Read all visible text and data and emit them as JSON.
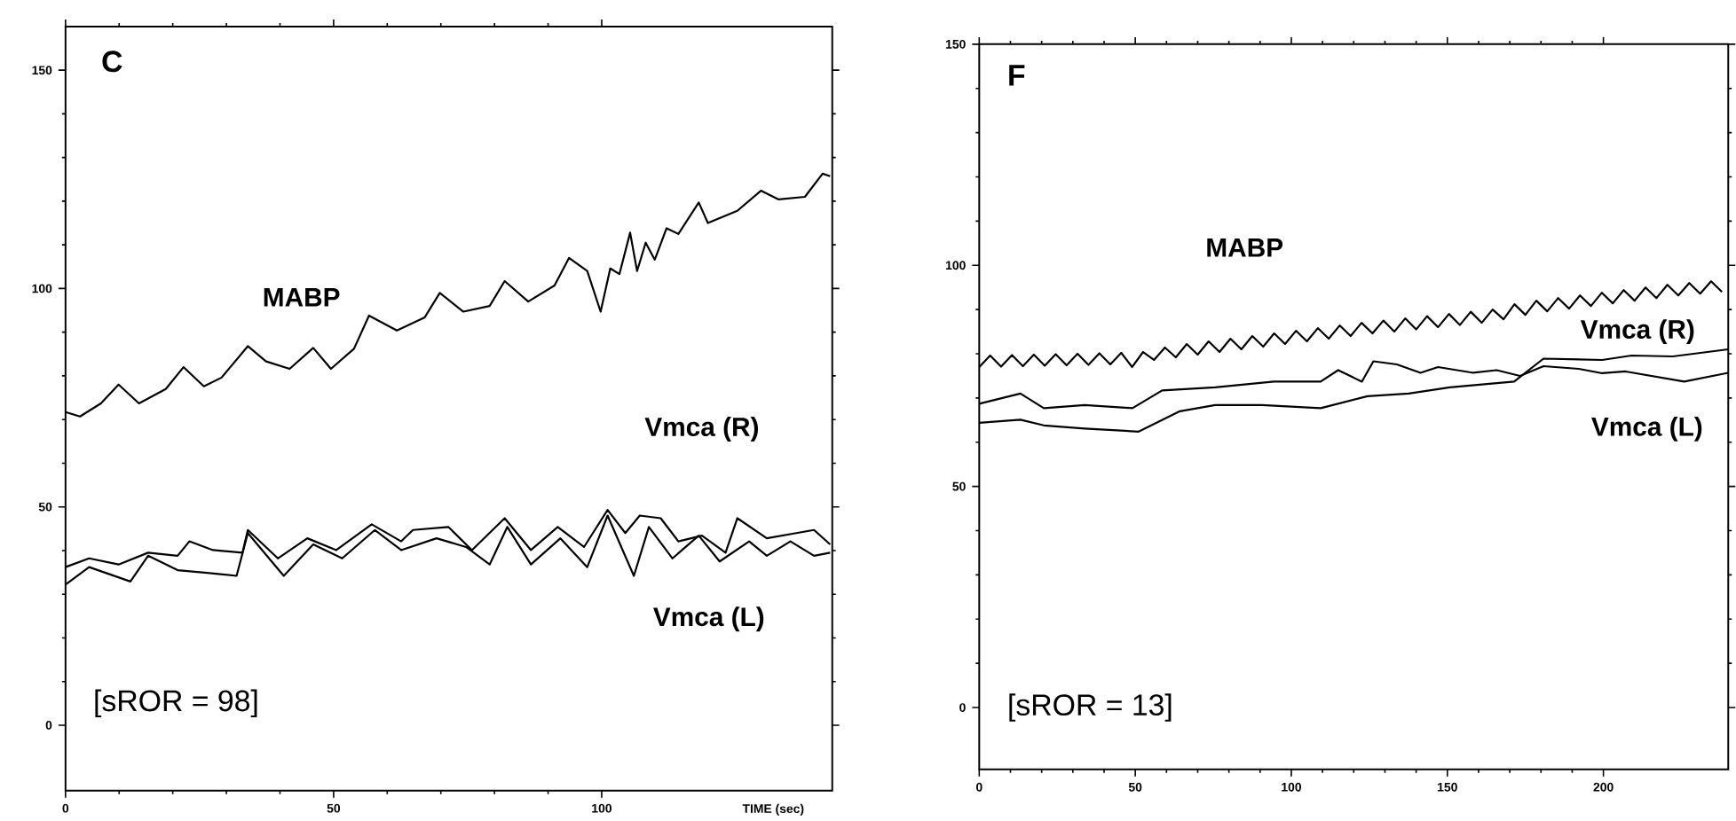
{
  "chart_data": [
    {
      "type": "line",
      "title": "C",
      "xlabel": "TIME (sec)",
      "annotations": [
        "[sROR = 98]"
      ],
      "xlim": [
        0,
        143
      ],
      "ylim": [
        -15,
        160
      ],
      "xticks": [
        0,
        50,
        100
      ],
      "yticks": [
        0,
        50,
        100,
        150
      ],
      "marker": "none",
      "line_style": "solid",
      "series": [
        {
          "name": "MABP",
          "color": "#000000",
          "x": [
            0,
            2.7,
            6.6,
            9.9,
            13.7,
            18.7,
            22,
            25.8,
            29.1,
            34,
            37.4,
            41.8,
            46.2,
            49.5,
            53.8,
            56.6,
            61.8,
            67,
            69.8,
            74.2,
            79.1,
            81.9,
            86.3,
            91.2,
            93.9,
            97.3,
            99.8,
            101.6,
            103.3,
            105.3,
            106.6,
            108.2,
            109.9,
            112.1,
            114.3,
            118.1,
            119.8,
            125.3,
            129.7,
            133,
            137.9,
            141.2,
            142.6
          ],
          "values": [
            71.7,
            70.7,
            73.7,
            78,
            73.7,
            77,
            82,
            77.6,
            79.6,
            86.8,
            83.3,
            81.6,
            86.4,
            81.6,
            86.2,
            93.8,
            90.4,
            93.4,
            99,
            94.7,
            96,
            101.7,
            97,
            100.7,
            107,
            104,
            94.7,
            104.6,
            103.3,
            112.8,
            104,
            110.5,
            106.6,
            113.8,
            112.5,
            119.7,
            115,
            117.8,
            122.4,
            120.4,
            121,
            126.3,
            125.7
          ]
        },
        {
          "name": "Vmca (R)",
          "color": "#000000",
          "x": [
            0,
            4.4,
            9.9,
            15.4,
            20.9,
            23.1,
            27.5,
            33,
            34,
            39.6,
            45.1,
            50.5,
            57.1,
            62.6,
            64.8,
            71.4,
            75.8,
            81.9,
            86.8,
            91.8,
            96.7,
            101.1,
            104.4,
            107.1,
            111,
            114.3,
            118.7,
            123.1,
            125.3,
            130.8,
            136.3,
            139.6,
            142.6
          ],
          "values": [
            36.2,
            38.2,
            36.8,
            39.5,
            38.8,
            42.1,
            40.1,
            39.5,
            44.7,
            38.2,
            42.8,
            40.1,
            46,
            42.1,
            44.7,
            45.4,
            40.1,
            47.4,
            40.1,
            45.4,
            40.8,
            49.3,
            44,
            48,
            47.4,
            42.1,
            43.4,
            39.5,
            47.4,
            42.8,
            44,
            44.7,
            41.4
          ]
        },
        {
          "name": "Vmca (L)",
          "color": "#000000",
          "x": [
            0,
            4.4,
            12.1,
            15.4,
            20.9,
            26.4,
            31.9,
            34,
            40.7,
            46.2,
            51.6,
            57.7,
            62.6,
            69.2,
            74.7,
            79.1,
            82.4,
            86.8,
            92.3,
            97.3,
            101.1,
            106,
            108.8,
            113.2,
            118.1,
            122,
            127.5,
            130.8,
            135.2,
            139.6,
            142.6
          ],
          "values": [
            32.2,
            36.2,
            32.9,
            38.8,
            35.5,
            34.9,
            34.2,
            44,
            34.2,
            41.4,
            38.2,
            44.7,
            40.1,
            42.8,
            40.8,
            36.8,
            45.4,
            36.8,
            42.8,
            36.2,
            48,
            34.2,
            45.4,
            38.2,
            43.4,
            37.5,
            42.1,
            38.8,
            42.1,
            38.8,
            39.5
          ]
        }
      ]
    },
    {
      "type": "line",
      "title": "F",
      "annotations": [
        "[sROR = 13]"
      ],
      "xlim": [
        0,
        240
      ],
      "ylim": [
        -14,
        150
      ],
      "xticks": [
        0,
        50,
        100,
        150,
        200
      ],
      "yticks": [
        0,
        50,
        100,
        150
      ],
      "marker": "none",
      "line_style": "solid",
      "series": [
        {
          "name": "MABP",
          "color": "#000000",
          "x": [
            0,
            3.5,
            7,
            10.5,
            14,
            17.5,
            21,
            24.5,
            28,
            31.5,
            35,
            38.5,
            42,
            45.5,
            49,
            52.5,
            56,
            59.5,
            63,
            66.5,
            70,
            73.5,
            77,
            80.5,
            84,
            87.5,
            91,
            94.5,
            98,
            101.5,
            105,
            108.5,
            112,
            115.5,
            119,
            122.5,
            126,
            129.5,
            133,
            136.5,
            140,
            143.5,
            147,
            150.5,
            154,
            157.5,
            161,
            164.5,
            168,
            171.5,
            175,
            178.5,
            182,
            185.5,
            189,
            192.5,
            196,
            199.5,
            203,
            206.5,
            210,
            213.5,
            217,
            220.5,
            224,
            227.5,
            231,
            234.5,
            238
          ],
          "values": [
            77.0,
            79.6,
            77.1,
            79.7,
            77.2,
            79.8,
            77.3,
            79.9,
            77.4,
            80.0,
            77.5,
            80.1,
            77.6,
            80.2,
            77.0,
            80.4,
            78.6,
            81.4,
            79.2,
            82.2,
            79.8,
            82.8,
            80.4,
            83.4,
            81.0,
            84.0,
            81.6,
            84.6,
            82.2,
            85.2,
            82.8,
            85.8,
            83.4,
            86.4,
            84.0,
            87.0,
            84.6,
            87.5,
            85.0,
            88.0,
            85.5,
            88.5,
            86.0,
            89.0,
            86.5,
            89.5,
            87.0,
            90.0,
            87.8,
            91.2,
            88.8,
            92.0,
            89.6,
            92.6,
            90.2,
            93.2,
            90.8,
            93.8,
            91.4,
            94.4,
            92.0,
            95.0,
            92.6,
            95.6,
            93.2,
            96.0,
            93.6,
            96.4,
            94.0
          ]
        },
        {
          "name": "Vmca (R)",
          "color": "#000000",
          "x": [
            0,
            13.2,
            20.7,
            33.8,
            51.1,
            64.3,
            75.6,
            90.6,
            109.4,
            124.4,
            137.6,
            150.8,
            171.4,
            180.8,
            199.6,
            209,
            222.2,
            240
          ],
          "values": [
            64.4,
            65.1,
            63.8,
            63.1,
            62.4,
            67,
            68.4,
            68.4,
            67.7,
            70.4,
            71,
            72.4,
            73.7,
            78.9,
            78.6,
            79.6,
            79.4,
            81
          ]
        },
        {
          "name": "Vmca (L)",
          "color": "#000000",
          "x": [
            0,
            13.2,
            20.7,
            33.8,
            49.1,
            58.6,
            75.6,
            94.4,
            109.4,
            115,
            122.6,
            126.3,
            133.8,
            141.4,
            147,
            158.3,
            165.8,
            173.3,
            180.8,
            192.1,
            199.6,
            207.1,
            225.9,
            240
          ],
          "values": [
            68.7,
            71,
            67.7,
            68.4,
            67.7,
            71.7,
            72.4,
            73.7,
            73.7,
            76.3,
            73.7,
            78.3,
            77.6,
            75.7,
            77,
            75.7,
            76.3,
            75,
            77.2,
            76.6,
            75.6,
            76,
            73.7,
            75.7
          ]
        }
      ]
    }
  ]
}
